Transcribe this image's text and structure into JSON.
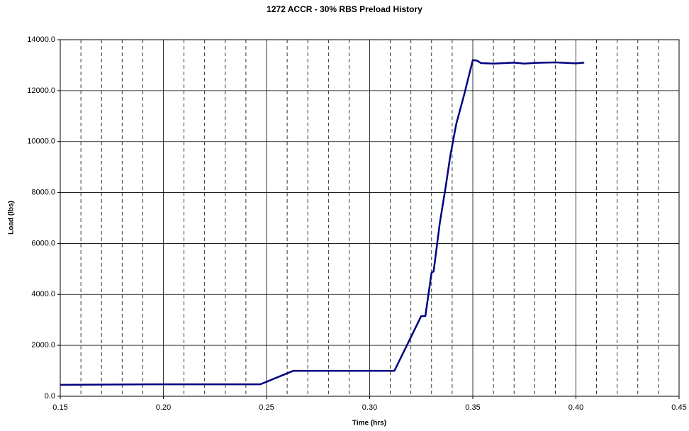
{
  "chart_data": {
    "type": "line",
    "title": "1272 ACCR - 30% RBS Preload History",
    "x_label": "Time (hrs)",
    "y_label": "Load (lbs)",
    "xlim": [
      0.15,
      0.45
    ],
    "xticks": [
      {
        "value": 0.15,
        "label": "0.15"
      },
      {
        "value": 0.2,
        "label": "0.20"
      },
      {
        "value": 0.25,
        "label": "0.25"
      },
      {
        "value": 0.3,
        "label": "0.30"
      },
      {
        "value": 0.35,
        "label": "0.35"
      },
      {
        "value": 0.4,
        "label": "0.40"
      },
      {
        "value": 0.45,
        "label": "0.45"
      }
    ],
    "x_minor_grid": [
      0.16,
      0.17,
      0.18,
      0.19,
      0.21,
      0.22,
      0.23,
      0.24,
      0.26,
      0.27,
      0.28,
      0.29,
      0.31,
      0.32,
      0.33,
      0.34,
      0.36,
      0.37,
      0.38,
      0.39,
      0.41,
      0.42,
      0.43,
      0.44
    ],
    "ylim": [
      0,
      14000
    ],
    "yticks": [
      {
        "value": 0,
        "label": "0.0"
      },
      {
        "value": 2000,
        "label": "2000.0"
      },
      {
        "value": 4000,
        "label": "4000.0"
      },
      {
        "value": 6000,
        "label": "6000.0"
      },
      {
        "value": 8000,
        "label": "8000.0"
      },
      {
        "value": 10000,
        "label": "10000.0"
      },
      {
        "value": 12000,
        "label": "12000.0"
      },
      {
        "value": 14000,
        "label": "14000.0"
      }
    ],
    "grid": true,
    "series": [
      {
        "color": "#000080",
        "x": [
          0.15,
          0.195,
          0.247,
          0.263,
          0.312,
          0.325,
          0.327,
          0.33,
          0.331,
          0.334,
          0.337,
          0.339,
          0.342,
          0.346,
          0.35,
          0.352,
          0.354,
          0.36,
          0.37,
          0.375,
          0.38,
          0.39,
          0.4,
          0.404
        ],
        "values": [
          450,
          470,
          470,
          1000,
          1000,
          3150,
          3150,
          4850,
          4900,
          6800,
          8300,
          9400,
          10700,
          11900,
          13200,
          13180,
          13080,
          13060,
          13100,
          13060,
          13090,
          13110,
          13070,
          13100
        ]
      }
    ]
  }
}
